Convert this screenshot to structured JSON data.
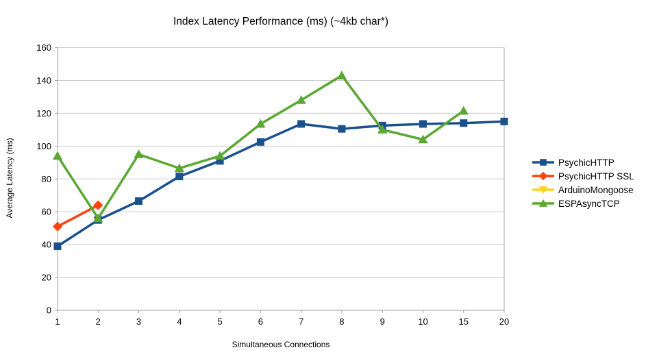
{
  "chart_data": {
    "type": "line",
    "title": "Index Latency Performance (ms) (~4kb char*)",
    "xlabel": "Simultaneous Connections",
    "ylabel": "Average Latency (ms)",
    "categories": [
      "1",
      "2",
      "3",
      "4",
      "5",
      "6",
      "7",
      "8",
      "9",
      "10",
      "15",
      "20"
    ],
    "ylim": [
      0,
      160
    ],
    "y_ticks": [
      0,
      20,
      40,
      60,
      80,
      100,
      120,
      140,
      160
    ],
    "grid": "horizontal",
    "legend_position": "right",
    "colors": {
      "grid": "#cccccc",
      "axis": "#a0a0a0",
      "background": "#ffffff",
      "text": "#000000"
    },
    "series": [
      {
        "name": "PsychicHTTP",
        "color": "#1A508C",
        "marker": "square",
        "values": [
          39,
          55,
          66.5,
          81.5,
          91,
          102.5,
          113.5,
          110.5,
          112.5,
          113.5,
          114,
          115
        ]
      },
      {
        "name": "PsychicHTTP SSL",
        "color": "#FF420E",
        "marker": "diamond",
        "values": [
          51,
          64,
          null,
          null,
          null,
          null,
          null,
          null,
          null,
          null,
          null,
          null
        ]
      },
      {
        "name": "ArduinoMongoose",
        "color": "#FFD320",
        "marker": "triangle-down",
        "values": [
          null,
          null,
          null,
          null,
          null,
          null,
          null,
          null,
          null,
          null,
          null,
          null
        ]
      },
      {
        "name": "ESPAsyncTCP",
        "color": "#5AA832",
        "marker": "triangle-up",
        "values": [
          94,
          56,
          95,
          86.5,
          94,
          113.5,
          128,
          143,
          110,
          104,
          121.5,
          null
        ]
      }
    ]
  }
}
